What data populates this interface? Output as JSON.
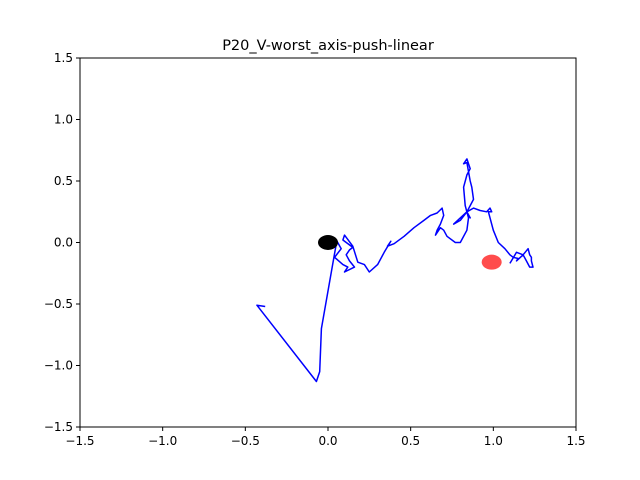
{
  "chart_data": {
    "type": "line",
    "title": "P20_V-worst_axis-push-linear",
    "xlabel": "",
    "ylabel": "",
    "xlim": [
      -1.5,
      1.5
    ],
    "ylim": [
      -1.5,
      1.5
    ],
    "grid": false,
    "x_ticks": [
      -1.5,
      -1.0,
      -0.5,
      0.0,
      0.5,
      1.0,
      1.5
    ],
    "y_ticks": [
      -1.5,
      -1.0,
      -0.5,
      0.0,
      0.5,
      1.0,
      1.5
    ],
    "x_tick_labels": [
      "−1.5",
      "−1.0",
      "−0.5",
      "0.0",
      "0.5",
      "1.0",
      "1.5"
    ],
    "y_tick_labels": [
      "−1.5",
      "−1.0",
      "−0.5",
      "0.0",
      "0.5",
      "1.0",
      "1.5"
    ],
    "series": [
      {
        "color": "#0000ff",
        "x": [
          -0.38,
          -0.43,
          -0.07,
          -0.05,
          -0.04,
          0.05,
          0.05,
          0.08,
          0.04,
          0.09,
          0.12,
          0.1,
          0.16,
          0.13,
          0.11,
          0.13,
          0.15,
          0.09,
          0.1,
          0.15,
          0.18,
          0.22,
          0.25,
          0.3,
          0.34,
          0.38,
          0.36,
          0.4,
          0.46,
          0.52,
          0.58,
          0.62,
          0.66,
          0.69,
          0.7,
          0.68,
          0.66,
          0.65,
          0.68,
          0.7,
          0.72,
          0.77,
          0.8,
          0.84,
          0.85,
          0.83,
          0.82,
          0.84,
          0.86,
          0.84,
          0.82,
          0.84,
          0.86,
          0.87,
          0.88,
          0.86,
          0.84,
          0.86,
          0.84,
          0.8,
          0.76,
          0.8,
          0.84,
          0.88,
          0.92,
          0.96,
          0.98,
          0.99,
          0.97,
          1.0,
          1.03,
          1.07,
          1.1,
          1.12,
          1.15,
          1.14,
          1.18,
          1.21,
          1.22,
          1.23,
          1.23,
          1.24,
          1.22,
          1.2,
          1.18,
          1.14,
          1.1
        ],
        "y": [
          -0.52,
          -0.51,
          -1.13,
          -1.05,
          -0.7,
          -0.01,
          0.02,
          -0.05,
          -0.12,
          -0.18,
          -0.2,
          -0.24,
          -0.2,
          -0.15,
          -0.1,
          -0.06,
          -0.04,
          0.02,
          0.06,
          -0.03,
          -0.16,
          -0.18,
          -0.24,
          -0.18,
          -0.08,
          0.01,
          -0.03,
          -0.01,
          0.05,
          0.12,
          0.18,
          0.22,
          0.24,
          0.28,
          0.22,
          0.15,
          0.1,
          0.06,
          0.12,
          0.1,
          0.05,
          0.0,
          0.0,
          0.1,
          0.2,
          0.3,
          0.45,
          0.55,
          0.6,
          0.68,
          0.64,
          0.65,
          0.5,
          0.45,
          0.35,
          0.3,
          0.25,
          0.2,
          0.25,
          0.18,
          0.15,
          0.2,
          0.25,
          0.28,
          0.26,
          0.25,
          0.28,
          0.25,
          0.25,
          0.1,
          0.0,
          -0.05,
          -0.1,
          -0.12,
          -0.13,
          -0.15,
          -0.1,
          -0.05,
          -0.1,
          -0.12,
          -0.15,
          -0.2,
          -0.2,
          -0.15,
          -0.1,
          -0.08,
          -0.17
        ]
      }
    ],
    "markers": [
      {
        "x": 0.0,
        "y": 0.0,
        "color": "#000000",
        "alpha": 1.0
      },
      {
        "x": 0.99,
        "y": -0.16,
        "color": "#ff0000",
        "alpha": 0.7
      }
    ]
  }
}
